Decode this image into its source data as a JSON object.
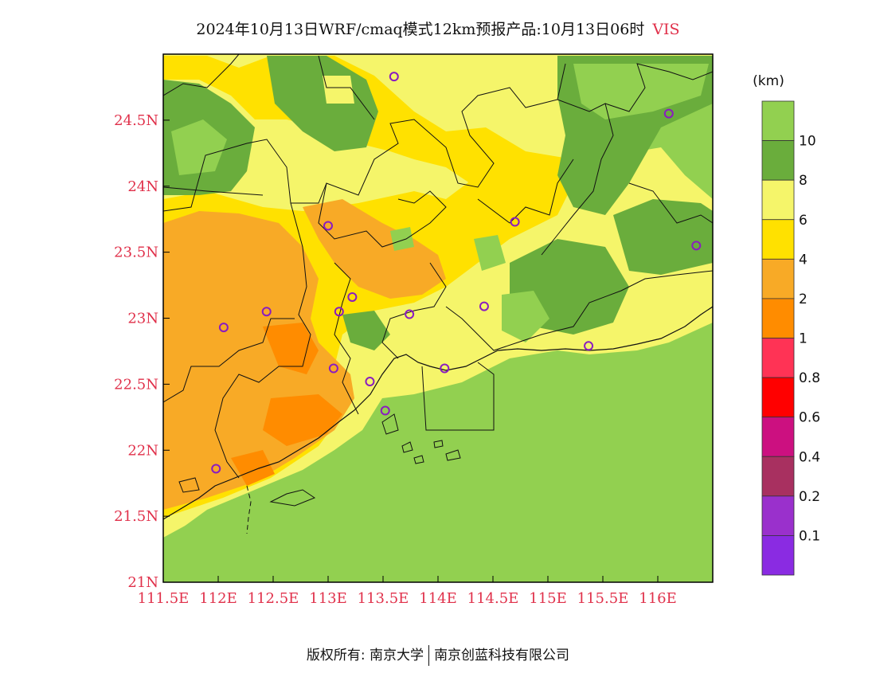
{
  "title": {
    "text": "2024年10月13日WRF/cmaq模式12km预报产品:10月13日06时",
    "variable": "VIS"
  },
  "footer": {
    "left": "版权所有: 南京大学",
    "right": "南京创蓝科技有限公司"
  },
  "chart_data": {
    "type": "heatmap",
    "xaxis": {
      "range": [
        111.5,
        116.5
      ],
      "ticks": [
        "111.5E",
        "112E",
        "112.5E",
        "113E",
        "113.5E",
        "114E",
        "114.5E",
        "115E",
        "115.5E",
        "116E"
      ]
    },
    "yaxis": {
      "range": [
        21.0,
        25.0
      ],
      "ticks": [
        "21N",
        "21.5N",
        "22N",
        "22.5N",
        "23N",
        "23.5N",
        "24N",
        "24.5N"
      ]
    },
    "colorbar": {
      "unit": "(km)",
      "labels": [
        "10",
        "8",
        "6",
        "4",
        "2",
        "1",
        "0.8",
        "0.6",
        "0.4",
        "0.2",
        "0.1"
      ],
      "colors": [
        "#92d050",
        "#6aad3c",
        "#f5f56a",
        "#ffe100",
        "#f8aa26",
        "#ff8c00",
        "#ff3355",
        "#ff0000",
        "#cc1080",
        "#a83060",
        "#9a30cc",
        "#8a2be2"
      ]
    },
    "stations": [
      {
        "lon": 113.6,
        "lat": 24.83
      },
      {
        "lon": 116.1,
        "lat": 24.55
      },
      {
        "lon": 113.0,
        "lat": 23.7
      },
      {
        "lon": 114.7,
        "lat": 23.73
      },
      {
        "lon": 116.35,
        "lat": 23.55
      },
      {
        "lon": 112.44,
        "lat": 23.05
      },
      {
        "lon": 113.1,
        "lat": 23.05
      },
      {
        "lon": 113.22,
        "lat": 23.16
      },
      {
        "lon": 113.74,
        "lat": 23.03
      },
      {
        "lon": 114.42,
        "lat": 23.09
      },
      {
        "lon": 112.05,
        "lat": 22.93
      },
      {
        "lon": 115.37,
        "lat": 22.79
      },
      {
        "lon": 113.05,
        "lat": 22.62
      },
      {
        "lon": 113.38,
        "lat": 22.52
      },
      {
        "lon": 114.06,
        "lat": 22.62
      },
      {
        "lon": 113.52,
        "lat": 22.3
      },
      {
        "lon": 111.98,
        "lat": 21.86
      }
    ]
  }
}
